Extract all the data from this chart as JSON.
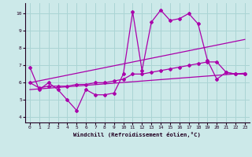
{
  "xlabel": "Windchill (Refroidissement éolien,°C)",
  "xlim": [
    -0.5,
    23.5
  ],
  "ylim": [
    3.7,
    10.6
  ],
  "xticks": [
    0,
    1,
    2,
    3,
    4,
    5,
    6,
    7,
    8,
    9,
    10,
    11,
    12,
    13,
    14,
    15,
    16,
    17,
    18,
    19,
    20,
    21,
    22,
    23
  ],
  "yticks": [
    4,
    5,
    6,
    7,
    8,
    9,
    10
  ],
  "background_color": "#cce9e9",
  "grid_color": "#aad4d4",
  "line_color": "#aa00aa",
  "line1_x": [
    0,
    1,
    2,
    3,
    4,
    5,
    6,
    7,
    8,
    9,
    10,
    11,
    12,
    13,
    14,
    15,
    16,
    17,
    18,
    19,
    20,
    21,
    22,
    23
  ],
  "line1_y": [
    6.9,
    5.6,
    6.0,
    5.6,
    5.0,
    4.4,
    5.6,
    5.3,
    5.3,
    5.4,
    6.5,
    10.1,
    6.7,
    9.5,
    10.2,
    9.6,
    9.7,
    10.0,
    9.4,
    7.3,
    6.2,
    6.6,
    6.5,
    6.5
  ],
  "line2_x": [
    0,
    1,
    2,
    3,
    4,
    5,
    6,
    7,
    8,
    9,
    10,
    11,
    12,
    13,
    14,
    15,
    16,
    17,
    18,
    19,
    20,
    21,
    22,
    23
  ],
  "line2_y": [
    6.0,
    5.7,
    5.8,
    5.8,
    5.8,
    5.9,
    5.9,
    6.0,
    6.0,
    6.1,
    6.2,
    6.5,
    6.5,
    6.6,
    6.7,
    6.8,
    6.9,
    7.0,
    7.1,
    7.2,
    7.2,
    6.6,
    6.5,
    6.5
  ],
  "line3_x": [
    0,
    23
  ],
  "line3_y": [
    5.6,
    6.55
  ],
  "line4_x": [
    0,
    23
  ],
  "line4_y": [
    6.0,
    8.5
  ]
}
